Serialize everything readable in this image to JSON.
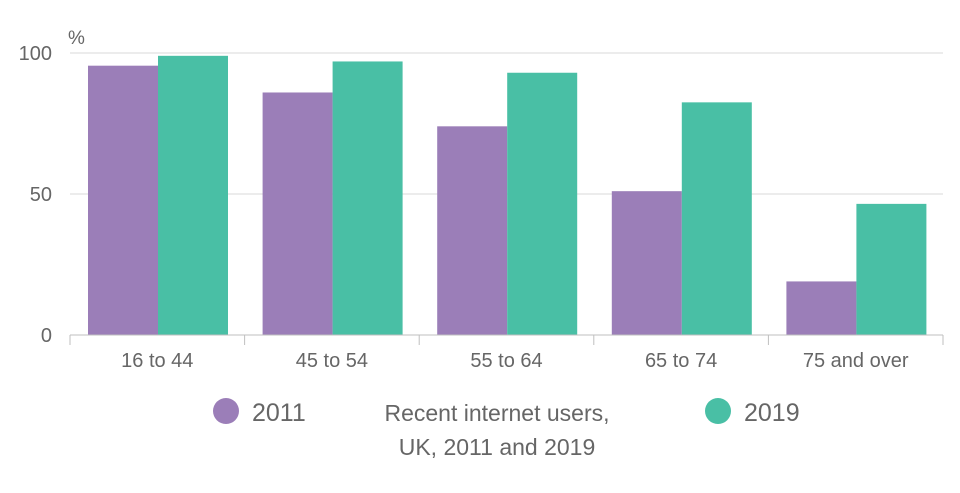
{
  "chart_data": {
    "type": "bar",
    "unit": "%",
    "categories": [
      "16 to 44",
      "45 to 54",
      "55 to 64",
      "65 to 74",
      "75 and over"
    ],
    "series": [
      {
        "name": "2011",
        "values": [
          95.5,
          86,
          74,
          51,
          19
        ]
      },
      {
        "name": "2019",
        "values": [
          99,
          97,
          93,
          82.5,
          46.5
        ]
      }
    ],
    "ylim": [
      0,
      100
    ],
    "yticks": [
      0,
      50,
      100
    ],
    "grid": true,
    "legend_position": "bottom",
    "caption": [
      "Recent internet users,",
      "UK, 2011 and 2019"
    ],
    "colors": {
      "2011": "#9b7eb8",
      "2019": "#49bfa5",
      "grid": "#d9d9d9",
      "axis": "#bfbfbf",
      "text": "#666666"
    }
  }
}
